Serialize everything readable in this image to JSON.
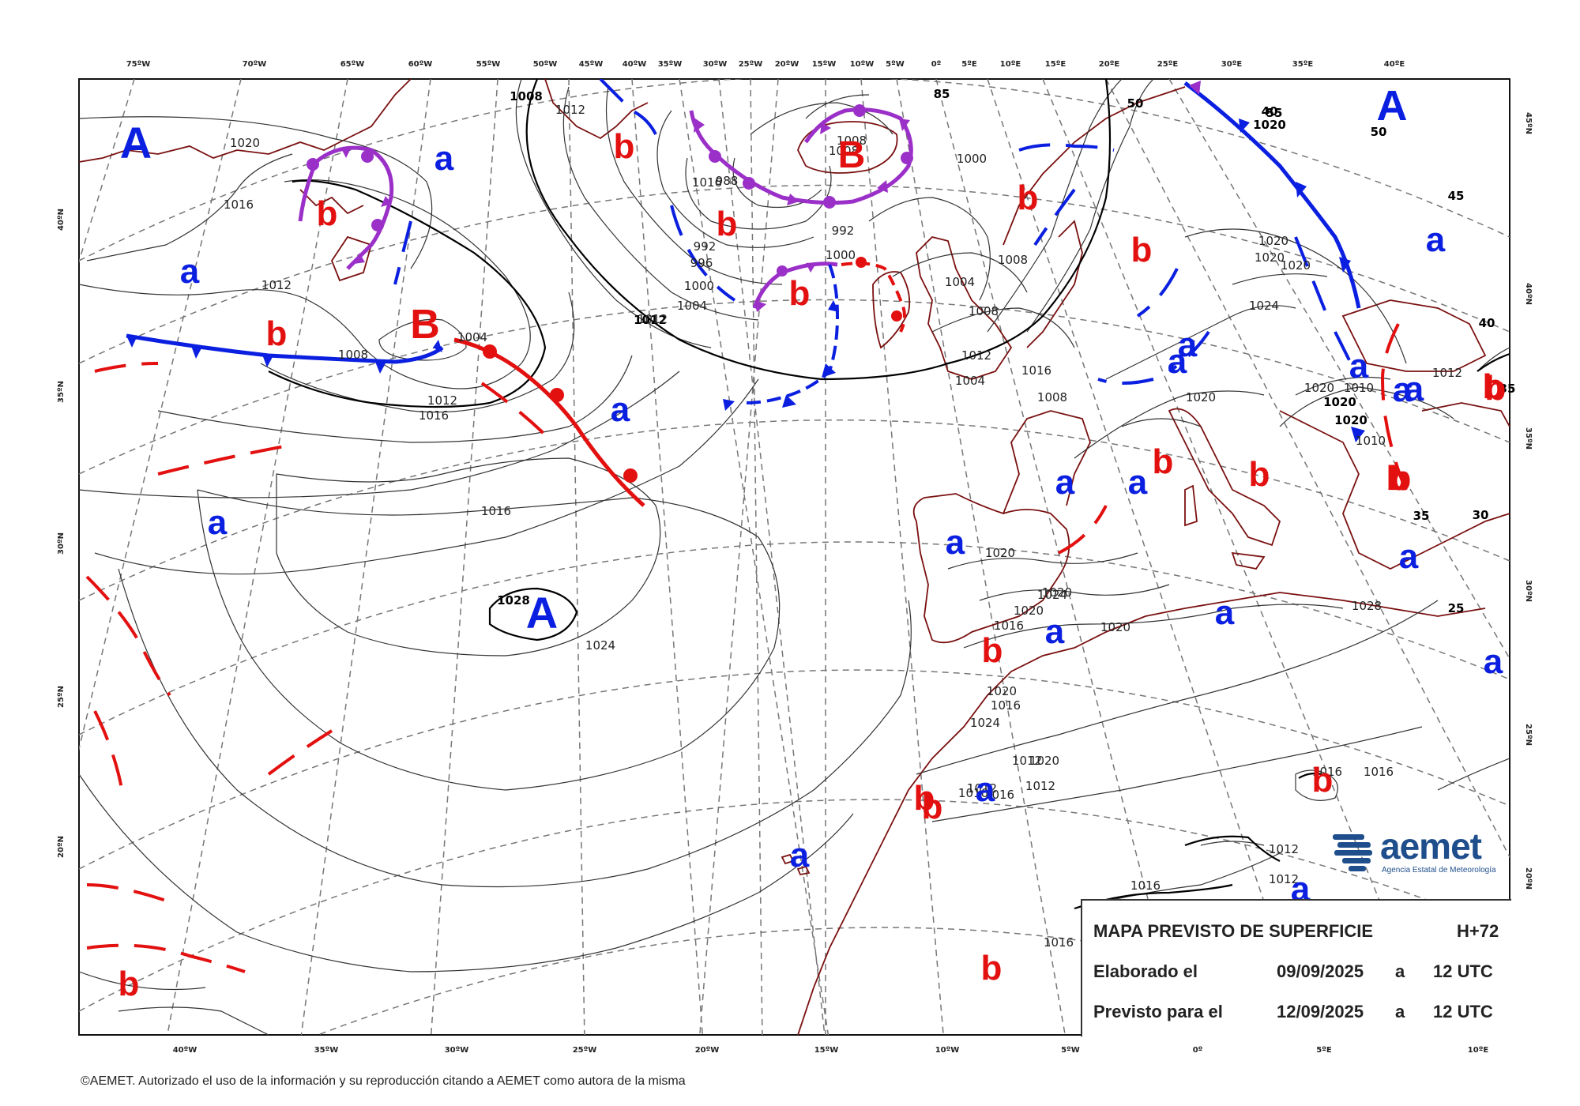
{
  "top_lon_ticks": [
    "75ºW",
    "70ºW",
    "65ºW",
    "60ºW",
    "55ºW",
    "50ºW",
    "45ºW",
    "40ºW",
    "35ºW",
    "30ºW",
    "25ºW",
    "20ºW",
    "15ºW",
    "10ºW",
    "5ºW",
    "0º",
    "5ºE",
    "10ºE",
    "15ºE",
    "20ºE",
    "25ºE",
    "30ºE",
    "35ºE",
    "40ºE"
  ],
  "bottom_lon_ticks": [
    "40ºW",
    "35ºW",
    "30ºW",
    "25ºW",
    "20ºW",
    "15ºW",
    "10ºW",
    "5ºW",
    "0º",
    "5ºE",
    "10ºE"
  ],
  "left_lat_ticks": [
    "40ºN",
    "35ºN",
    "30ºN",
    "25ºN",
    "20ºN"
  ],
  "right_lat_ticks": [
    "45ºN",
    "40ºN",
    "35ºN",
    "30ºN",
    "25ºN",
    "20ºN"
  ],
  "pressure_centers": [
    {
      "letter": "A",
      "kind": "high",
      "color": "#0b1fe0"
    },
    {
      "letter": "B",
      "kind": "low",
      "color": "#e31010"
    },
    {
      "letter": "B",
      "kind": "low",
      "color": "#e31010"
    },
    {
      "letter": "A",
      "kind": "high",
      "color": "#0b1fe0"
    },
    {
      "letter": "A",
      "kind": "high",
      "color": "#0b1fe0"
    }
  ],
  "isobar_labels": [
    "1020",
    "1016",
    "1012",
    "1008",
    "1012",
    "1004",
    "1000",
    "1008",
    "1012",
    "1016",
    "1008",
    "1008",
    "988",
    "992",
    "996",
    "1004",
    "1000",
    "992",
    "1000",
    "1004",
    "1008",
    "1012",
    "1012",
    "1020",
    "1008",
    "1004",
    "1008",
    "1016",
    "1012",
    "1016",
    "1016",
    "1020",
    "1024",
    "1028",
    "1024",
    "1020",
    "1020",
    "1020",
    "1020",
    "1020",
    "1020",
    "1016",
    "1020",
    "1024",
    "1020",
    "1016",
    "1016",
    "1016",
    "1024",
    "1020",
    "1012",
    "1012",
    "1012",
    "1012",
    "1012",
    "1016",
    "1016",
    "1016",
    "1016",
    "1020",
    "1010",
    "1020",
    "1020",
    "1010",
    "1012",
    "1028"
  ],
  "latlon_labels": [
    "85",
    "55",
    "50",
    "45",
    "40",
    "35",
    "30",
    "25",
    "50",
    "40",
    "35"
  ],
  "letters_a": [
    "a",
    "a",
    "a",
    "a",
    "a",
    "a",
    "a",
    "a",
    "a",
    "a",
    "a",
    "a",
    "a",
    "a",
    "a",
    "a",
    "a",
    "a",
    "a",
    "a"
  ],
  "letters_b": [
    "b",
    "b",
    "b",
    "b",
    "b",
    "b",
    "b",
    "b",
    "b",
    "b",
    "b",
    "b",
    "b",
    "b",
    "b",
    "b",
    "b",
    "b",
    "b"
  ],
  "info": {
    "title": "MAPA PREVISTO DE SUPERFICIE",
    "range": "H+72",
    "made_label": "Elaborado el",
    "made_date": "09/09/2025",
    "made_a": "a",
    "made_time": "12 UTC",
    "valid_label": "Previsto para el",
    "valid_date": "12/09/2025",
    "valid_a": "a",
    "valid_time": "12 UTC"
  },
  "logo": {
    "name": "aemet",
    "subtitle": "Agencia Estatal de Meteorología"
  },
  "copyright": "©AEMET. Autorizado el uso de la información y su reproducción citando a AEMET como autora de la misma",
  "colors": {
    "warm_front": "#e31010",
    "cold_front": "#0b1fe0",
    "occluded_front": "#9b30c8",
    "isobar": "#222222",
    "coast": "#7a1010",
    "grid": "#777777"
  }
}
